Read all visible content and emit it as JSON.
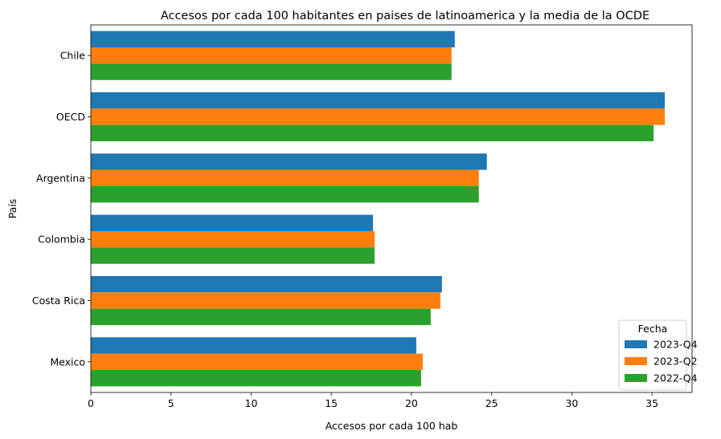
{
  "chart_data": {
    "type": "bar",
    "orientation": "horizontal",
    "title": "Accesos por cada 100 habitantes en paises de latinoamerica y la media de la OCDE",
    "xlabel": "Accesos por cada 100 hab",
    "ylabel": "País",
    "xlim": [
      0,
      37.5
    ],
    "xticks": [
      0,
      5,
      10,
      15,
      20,
      25,
      30,
      35
    ],
    "grid": false,
    "legend": {
      "title": "Fecha",
      "position": "lower-right"
    },
    "categories": [
      "Chile",
      "OECD",
      "Argentina",
      "Colombia",
      "Costa Rica",
      "Mexico"
    ],
    "series": [
      {
        "name": "2023-Q4",
        "color": "#1f77b4",
        "values": [
          22.7,
          35.8,
          24.7,
          17.6,
          21.9,
          20.3
        ]
      },
      {
        "name": "2023-Q2",
        "color": "#ff7f0e",
        "values": [
          22.5,
          35.8,
          24.2,
          17.7,
          21.8,
          20.7
        ]
      },
      {
        "name": "2022-Q4",
        "color": "#2ca02c",
        "values": [
          22.5,
          35.1,
          24.2,
          17.7,
          21.2,
          20.6
        ]
      }
    ]
  }
}
